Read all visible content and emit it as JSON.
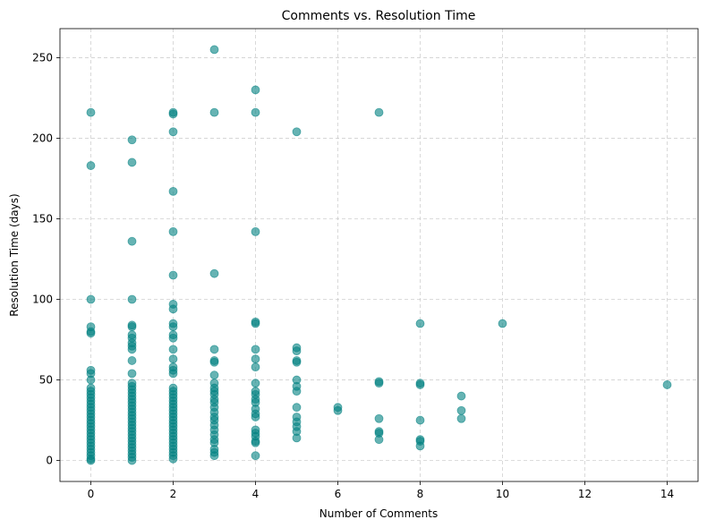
{
  "chart_data": {
    "type": "scatter",
    "title": "Comments vs. Resolution Time",
    "xlabel": "Number of Comments",
    "ylabel": "Resolution Time (days)",
    "xlim": [
      -0.75,
      14.75
    ],
    "ylim": [
      -13,
      268
    ],
    "xticks": [
      0,
      2,
      4,
      6,
      8,
      10,
      12,
      14
    ],
    "yticks": [
      0,
      50,
      100,
      150,
      200,
      250
    ],
    "grid": true,
    "marker_color": "#008080",
    "marker_alpha": 0.6,
    "points": [
      [
        0,
        216
      ],
      [
        0,
        183
      ],
      [
        0,
        100
      ],
      [
        0,
        83
      ],
      [
        0,
        80
      ],
      [
        0,
        79
      ],
      [
        0,
        56
      ],
      [
        0,
        54
      ],
      [
        0,
        50
      ],
      [
        0,
        45
      ],
      [
        0,
        43
      ],
      [
        0,
        41
      ],
      [
        0,
        39
      ],
      [
        0,
        37
      ],
      [
        0,
        35
      ],
      [
        0,
        33
      ],
      [
        0,
        31
      ],
      [
        0,
        29
      ],
      [
        0,
        27
      ],
      [
        0,
        25
      ],
      [
        0,
        23
      ],
      [
        0,
        21
      ],
      [
        0,
        19
      ],
      [
        0,
        17
      ],
      [
        0,
        15
      ],
      [
        0,
        13
      ],
      [
        0,
        11
      ],
      [
        0,
        9
      ],
      [
        0,
        7
      ],
      [
        0,
        5
      ],
      [
        0,
        3
      ],
      [
        0,
        1
      ],
      [
        0,
        0
      ],
      [
        1,
        199
      ],
      [
        1,
        185
      ],
      [
        1,
        136
      ],
      [
        1,
        100
      ],
      [
        1,
        84
      ],
      [
        1,
        83
      ],
      [
        1,
        78
      ],
      [
        1,
        76
      ],
      [
        1,
        73
      ],
      [
        1,
        71
      ],
      [
        1,
        69
      ],
      [
        1,
        62
      ],
      [
        1,
        54
      ],
      [
        1,
        48
      ],
      [
        1,
        46
      ],
      [
        1,
        44
      ],
      [
        1,
        42
      ],
      [
        1,
        40
      ],
      [
        1,
        38
      ],
      [
        1,
        36
      ],
      [
        1,
        34
      ],
      [
        1,
        32
      ],
      [
        1,
        30
      ],
      [
        1,
        28
      ],
      [
        1,
        26
      ],
      [
        1,
        24
      ],
      [
        1,
        22
      ],
      [
        1,
        20
      ],
      [
        1,
        18
      ],
      [
        1,
        16
      ],
      [
        1,
        14
      ],
      [
        1,
        12
      ],
      [
        1,
        10
      ],
      [
        1,
        8
      ],
      [
        1,
        6
      ],
      [
        1,
        4
      ],
      [
        1,
        2
      ],
      [
        1,
        0
      ],
      [
        2,
        216
      ],
      [
        2,
        215
      ],
      [
        2,
        204
      ],
      [
        2,
        167
      ],
      [
        2,
        142
      ],
      [
        2,
        115
      ],
      [
        2,
        97
      ],
      [
        2,
        94
      ],
      [
        2,
        85
      ],
      [
        2,
        83
      ],
      [
        2,
        78
      ],
      [
        2,
        76
      ],
      [
        2,
        69
      ],
      [
        2,
        63
      ],
      [
        2,
        58
      ],
      [
        2,
        56
      ],
      [
        2,
        54
      ],
      [
        2,
        45
      ],
      [
        2,
        43
      ],
      [
        2,
        41
      ],
      [
        2,
        39
      ],
      [
        2,
        37
      ],
      [
        2,
        35
      ],
      [
        2,
        33
      ],
      [
        2,
        31
      ],
      [
        2,
        29
      ],
      [
        2,
        27
      ],
      [
        2,
        25
      ],
      [
        2,
        23
      ],
      [
        2,
        21
      ],
      [
        2,
        19
      ],
      [
        2,
        17
      ],
      [
        2,
        15
      ],
      [
        2,
        13
      ],
      [
        2,
        11
      ],
      [
        2,
        9
      ],
      [
        2,
        7
      ],
      [
        2,
        5
      ],
      [
        2,
        3
      ],
      [
        2,
        1
      ],
      [
        3,
        255
      ],
      [
        3,
        216
      ],
      [
        3,
        116
      ],
      [
        3,
        69
      ],
      [
        3,
        62
      ],
      [
        3,
        61
      ],
      [
        3,
        53
      ],
      [
        3,
        48
      ],
      [
        3,
        45
      ],
      [
        3,
        43
      ],
      [
        3,
        41
      ],
      [
        3,
        38
      ],
      [
        3,
        36
      ],
      [
        3,
        33
      ],
      [
        3,
        30
      ],
      [
        3,
        27
      ],
      [
        3,
        25
      ],
      [
        3,
        22
      ],
      [
        3,
        19
      ],
      [
        3,
        16
      ],
      [
        3,
        13
      ],
      [
        3,
        11
      ],
      [
        3,
        7
      ],
      [
        3,
        5
      ],
      [
        3,
        3
      ],
      [
        4,
        230
      ],
      [
        4,
        216
      ],
      [
        4,
        142
      ],
      [
        4,
        86
      ],
      [
        4,
        85
      ],
      [
        4,
        69
      ],
      [
        4,
        63
      ],
      [
        4,
        58
      ],
      [
        4,
        48
      ],
      [
        4,
        43
      ],
      [
        4,
        41
      ],
      [
        4,
        38
      ],
      [
        4,
        36
      ],
      [
        4,
        32
      ],
      [
        4,
        29
      ],
      [
        4,
        27
      ],
      [
        4,
        19
      ],
      [
        4,
        17
      ],
      [
        4,
        15
      ],
      [
        4,
        12
      ],
      [
        4,
        11
      ],
      [
        4,
        3
      ],
      [
        5,
        204
      ],
      [
        5,
        70
      ],
      [
        5,
        68
      ],
      [
        5,
        62
      ],
      [
        5,
        61
      ],
      [
        5,
        50
      ],
      [
        5,
        46
      ],
      [
        5,
        43
      ],
      [
        5,
        33
      ],
      [
        5,
        27
      ],
      [
        5,
        24
      ],
      [
        5,
        21
      ],
      [
        5,
        18
      ],
      [
        5,
        14
      ],
      [
        6,
        33
      ],
      [
        6,
        31
      ],
      [
        7,
        216
      ],
      [
        7,
        49
      ],
      [
        7,
        48
      ],
      [
        7,
        26
      ],
      [
        7,
        18
      ],
      [
        7,
        17
      ],
      [
        7,
        13
      ],
      [
        8,
        85
      ],
      [
        8,
        48
      ],
      [
        8,
        47
      ],
      [
        8,
        25
      ],
      [
        8,
        13
      ],
      [
        8,
        12
      ],
      [
        8,
        9
      ],
      [
        9,
        40
      ],
      [
        9,
        31
      ],
      [
        9,
        26
      ],
      [
        10,
        85
      ],
      [
        14,
        47
      ]
    ]
  }
}
